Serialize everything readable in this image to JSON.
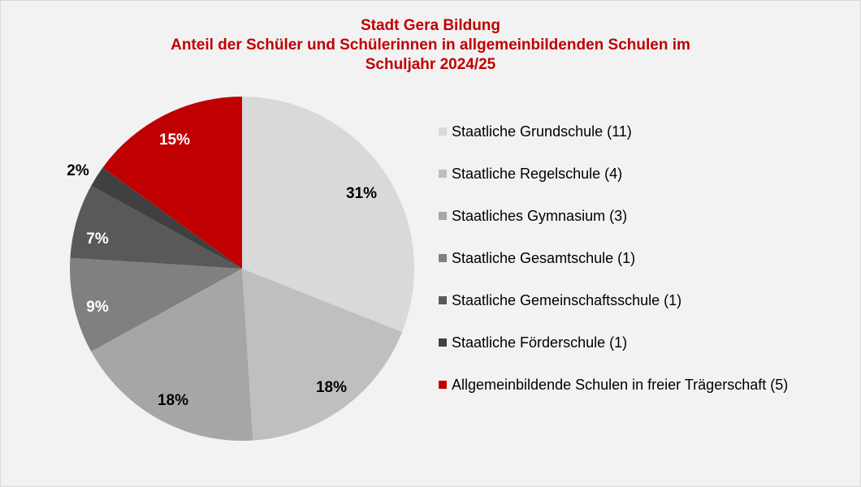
{
  "chart_data": {
    "type": "pie",
    "title": [
      "Stadt Gera Bildung",
      "Anteil der Schüler und Schülerinnen in allgemeinbildenden Schulen im",
      "Schuljahr 2024/25"
    ],
    "categories": [
      "Staatliche Grundschule (11)",
      "Staatliche Regelschule (4)",
      "Staatliches Gymnasium (3)",
      "Staatliche Gesamtschule (1)",
      "Staatliche Gemeinschaftsschule (1)",
      "Staatliche Förderschule (1)",
      "Allgemeinbildende Schulen in freier Trägerschaft (5)"
    ],
    "values": [
      31,
      18,
      18,
      9,
      7,
      2,
      15
    ],
    "data_labels": [
      "31%",
      "18%",
      "18%",
      "9%",
      "7%",
      "2%",
      "15%"
    ],
    "colors": [
      "#d9d9d9",
      "#bfbfbf",
      "#a6a6a6",
      "#808080",
      "#595959",
      "#404040",
      "#c00000"
    ],
    "label_colors": [
      "#000000",
      "#000000",
      "#000000",
      "#ffffff",
      "#ffffff",
      "#000000",
      "#ffffff"
    ],
    "legend_position": "right",
    "title_color": "#c00000"
  }
}
